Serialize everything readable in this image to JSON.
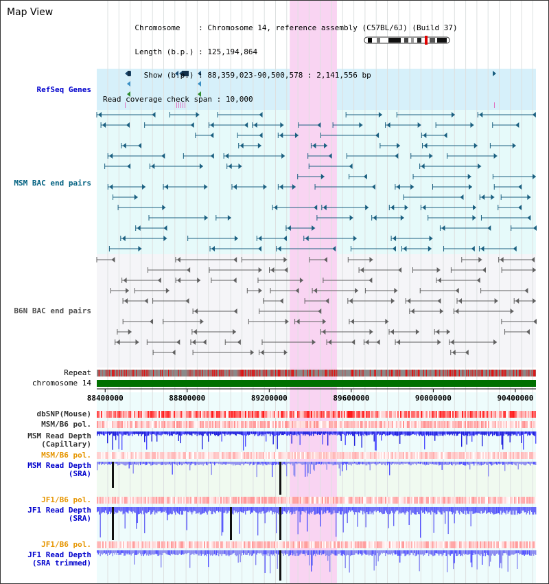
{
  "view_title": "Map View",
  "info": {
    "chromosome_label": "Chromosome",
    "chromosome_value": "Chromosome 14, reference assembly (C57BL/6J) (Build 37)",
    "length_label": "Length (b.p.)",
    "length_value": "125,194,864",
    "show_label": "Show (b.p.)",
    "show_value": "88,359,023-90,500,578 : 2,141,556 bp",
    "coverage_label": "Read coverage check span",
    "coverage_value": "10,000"
  },
  "tracks": {
    "refseq": {
      "label": "RefSeq Genes",
      "color": "#0000cc"
    },
    "msm_bac": {
      "label": "MSM BAC end pairs",
      "color": "#006080"
    },
    "b6n_bac": {
      "label": "B6N BAC end pairs",
      "color": "#505050"
    },
    "repeat": {
      "label": "Repeat"
    },
    "chromosome": {
      "label": "chromosome 14",
      "color": "#007000"
    },
    "dbsnp": {
      "label": "dbSNP(Mouse)"
    },
    "msm_b6_pol_1": {
      "label": "MSM/B6 pol."
    },
    "msm_depth_cap": {
      "label_line1": "MSM Read Depth",
      "label_line2": "(Capillary)",
      "color": "#0000cc"
    },
    "msm_b6_pol_2": {
      "label": "MSM/B6 pol.",
      "color": "#e69500"
    },
    "msm_depth_sra": {
      "label_line1": "MSM Read Depth",
      "label_line2": "(SRA)",
      "color": "#0000cc"
    },
    "jf1_b6_pol_1": {
      "label": "JF1/B6 pol.",
      "color": "#e69500"
    },
    "jf1_depth_sra": {
      "label_line1": "JF1 Read Depth",
      "label_line2": "(SRA)",
      "color": "#0000cc"
    },
    "jf1_b6_pol_2": {
      "label": "JF1/B6 pol.",
      "color": "#e69500"
    },
    "jf1_depth_trim": {
      "label_line1": "JF1 Read Depth",
      "label_line2": "(SRA trimmed)",
      "color": "#0000cc"
    }
  },
  "axis": {
    "start": 88359023,
    "end": 90500578,
    "ticks": [
      "88400000",
      "88800000",
      "89200000",
      "89600000",
      "90000000",
      "90400000"
    ],
    "tick_values": [
      88400000,
      88800000,
      89200000,
      89600000,
      90000000,
      90400000
    ],
    "highlight_range": [
      89300000,
      89530000
    ]
  },
  "colors": {
    "highlight": "#f9d4f2",
    "refseq_bg": "#d6f0fa",
    "msm_bg": "#e6fafa",
    "b6n_bg": "#f5f5f8",
    "gene_color": "#1a5f80",
    "b6n_color": "#606060"
  }
}
